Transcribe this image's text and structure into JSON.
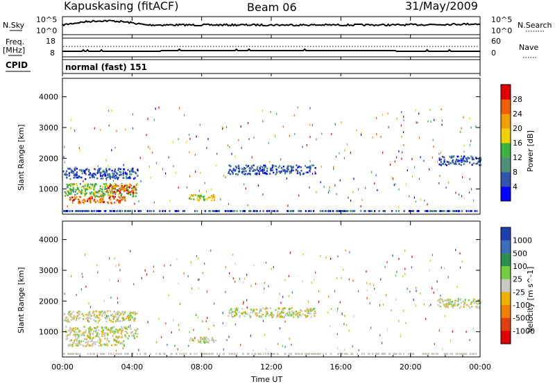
{
  "header": {
    "station": "Kapuskasing (fitACF)",
    "beam": "Beam 06",
    "date": "31/May/2009"
  },
  "sky_panel": {
    "left_label": "N.Sky",
    "left_ticks": [
      "10^5",
      "10^0"
    ],
    "right_label": "N.Search",
    "right_ticks": [
      "10^5",
      "10^0"
    ]
  },
  "freq_panel": {
    "left_label_1": "Freq.",
    "left_label_2": "[MHz]",
    "left_ticks": [
      "18",
      "8"
    ],
    "right_label": "Nave",
    "right_ticks": [
      "60",
      "0"
    ]
  },
  "cpid": {
    "label": "CPID",
    "mode": "normal (fast) 151"
  },
  "time_axis": {
    "label": "Time UT",
    "ticks": [
      "00:00",
      "04:00",
      "08:00",
      "12:00",
      "16:00",
      "20:00",
      "00:00"
    ]
  },
  "colors": {
    "power": [
      "#0000ff",
      "#2f55b0",
      "#4e8f7a",
      "#3cb33c",
      "#f0d000",
      "#f0a000",
      "#f06000",
      "#e00000"
    ],
    "velocity": [
      "#1f3fb0",
      "#3c6ec0",
      "#2f8f4f",
      "#6fcf3f",
      "#c8c8c0",
      "#f0b000",
      "#f08000",
      "#e04010",
      "#e00000"
    ]
  },
  "chart_data": [
    {
      "type": "heatmap",
      "name": "power",
      "ylabel": "Slant Range [km]",
      "xlabel": "",
      "ylim": [
        180,
        4600
      ],
      "yticks": [
        "1000",
        "2000",
        "3000",
        "4000"
      ],
      "x_hours": [
        0,
        24
      ],
      "colorbar_label": "Power [dB]",
      "colorbar_ticks": [
        "4",
        "8",
        "12",
        "16",
        "20",
        "24",
        "28"
      ],
      "regions": [
        {
          "t0": 0.0,
          "t1": 4.3,
          "r0": 1350,
          "r1": 1700,
          "level": 1
        },
        {
          "t0": 0.1,
          "t1": 4.3,
          "r0": 780,
          "r1": 1200,
          "level": 3
        },
        {
          "t0": 0.3,
          "t1": 3.6,
          "r0": 560,
          "r1": 780,
          "level": 6
        },
        {
          "t0": 2.5,
          "t1": 4.2,
          "r0": 900,
          "r1": 1150,
          "level": 6
        },
        {
          "t0": 7.2,
          "t1": 8.8,
          "r0": 650,
          "r1": 850,
          "level": 4
        },
        {
          "t0": 9.5,
          "t1": 14.5,
          "r0": 1500,
          "r1": 1800,
          "level": 1
        },
        {
          "t0": 21.5,
          "t1": 24.0,
          "r0": 1800,
          "r1": 2100,
          "level": 1
        }
      ]
    },
    {
      "type": "heatmap",
      "name": "velocity",
      "ylabel": "Slant Range [km]",
      "xlabel": "Time UT",
      "ylim": [
        180,
        4600
      ],
      "yticks": [
        "1000",
        "2000",
        "3000",
        "4000"
      ],
      "x_hours": [
        0,
        24
      ],
      "colorbar_label": "Velocity [m s^-1]",
      "colorbar_ticks": [
        "1000",
        "500",
        "100",
        "25",
        "-25",
        "-100",
        "-500",
        "-1000"
      ],
      "regions": [
        {
          "t0": 0.0,
          "t1": 4.3,
          "r0": 1350,
          "r1": 1700,
          "level": 4
        },
        {
          "t0": 0.1,
          "t1": 4.3,
          "r0": 780,
          "r1": 1200,
          "level": 4
        },
        {
          "t0": 0.3,
          "t1": 3.6,
          "r0": 560,
          "r1": 780,
          "level": 4
        },
        {
          "t0": 7.2,
          "t1": 8.8,
          "r0": 650,
          "r1": 850,
          "level": 4
        },
        {
          "t0": 9.5,
          "t1": 14.5,
          "r0": 1500,
          "r1": 1800,
          "level": 4
        },
        {
          "t0": 21.5,
          "t1": 24.0,
          "r0": 1800,
          "r1": 2100,
          "level": 4
        }
      ]
    }
  ]
}
